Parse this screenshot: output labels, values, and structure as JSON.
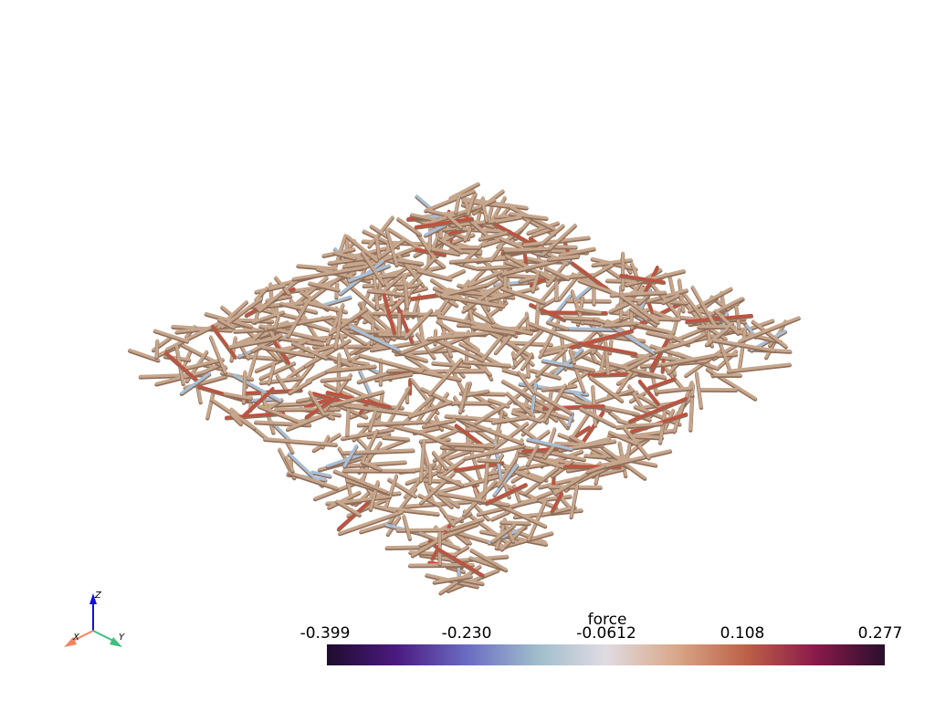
{
  "scalar_bar": {
    "title": "force",
    "ticks": [
      "-0.399",
      "-0.230",
      "-0.0612",
      "0.108",
      "0.277"
    ],
    "min": -0.399,
    "max": 0.277,
    "colormap": [
      "#1f0c2e",
      "#4b1a80",
      "#6a6bc2",
      "#9fbccb",
      "#e0dbe2",
      "#d9a88a",
      "#bd6248",
      "#8a1a4a",
      "#2a0f2e"
    ]
  },
  "axes": {
    "x_label": "X",
    "y_label": "Y",
    "z_label": "Z",
    "x_color": "#f4845f",
    "y_color": "#3fbf7f",
    "z_color": "#1010e0"
  },
  "fibers": {
    "base_color": "#c6a68c",
    "shade_color": "#8f6e5a",
    "tension_color": "#c0523f",
    "compression_color": "#a8bfd6",
    "count": 900
  }
}
